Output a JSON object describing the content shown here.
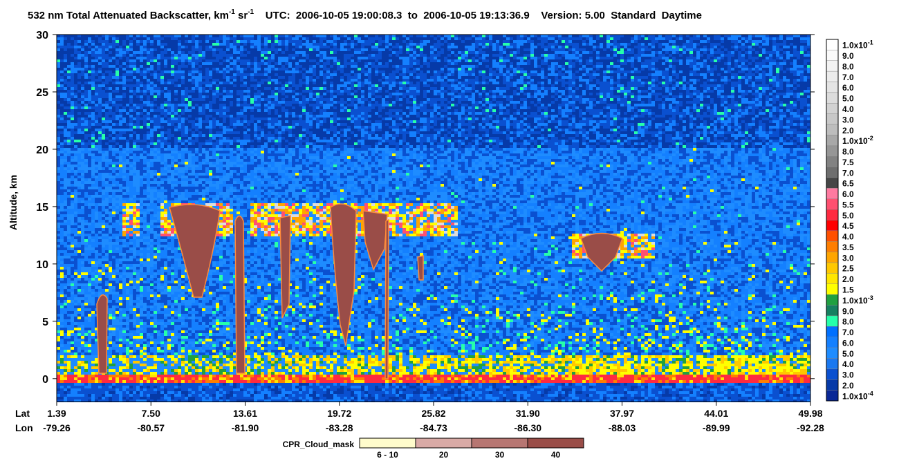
{
  "title": {
    "main": "532 nm Total Attenuated Backscatter, km",
    "sup1": "-1",
    "mid": " sr",
    "sup2": "-1",
    "rest": "    UTC:  2006-10-05 19:00:08.3  to  2006-10-05 19:13:36.9    Version: 5.00  Standard  Daytime"
  },
  "plot": {
    "ylabel": "Altitude, km",
    "ylim": [
      -2,
      30
    ],
    "yticks": [
      0,
      5,
      10,
      15,
      20,
      25,
      30
    ],
    "lat_label": "Lat",
    "lon_label": "Lon",
    "xticks": [
      {
        "lat": "1.39",
        "lon": "-79.26"
      },
      {
        "lat": "7.50",
        "lon": "-80.57"
      },
      {
        "lat": "13.61",
        "lon": "-81.90"
      },
      {
        "lat": "19.72",
        "lon": "-83.28"
      },
      {
        "lat": "25.82",
        "lon": "-84.73"
      },
      {
        "lat": "31.90",
        "lon": "-86.30"
      },
      {
        "lat": "37.97",
        "lon": "-88.03"
      },
      {
        "lat": "44.01",
        "lon": "-89.99"
      },
      {
        "lat": "49.98",
        "lon": "-92.28"
      }
    ]
  },
  "colorbar": {
    "labels": [
      {
        "text": "1.0x10",
        "sup": "-1"
      },
      "9.0",
      "8.0",
      "7.0",
      "6.0",
      "5.0",
      "4.0",
      "3.0",
      "2.0",
      {
        "text": "1.0x10",
        "sup": "-2"
      },
      "8.0",
      "7.5",
      "7.0",
      "6.5",
      "6.0",
      "5.5",
      "5.0",
      "4.5",
      "4.0",
      "3.5",
      "3.0",
      "2.5",
      "2.0",
      "1.5",
      {
        "text": "1.0x10",
        "sup": "-3"
      },
      "9.0",
      "8.0",
      "7.0",
      "6.0",
      "5.0",
      "4.0",
      "3.0",
      "2.0",
      {
        "text": "1.0x10",
        "sup": "-4"
      }
    ],
    "colors": [
      "#ffffff",
      "#fafafa",
      "#f3f3f3",
      "#ececec",
      "#e4e4e4",
      "#dcdcdc",
      "#d2d2d2",
      "#c8c8c8",
      "#bdbdbd",
      "#a8a8a8",
      "#969696",
      "#828282",
      "#6e6e6e",
      "#464646",
      "#ff7aa0",
      "#ff5070",
      "#ff2a40",
      "#ff0000",
      "#ff5000",
      "#ff7e00",
      "#ffa500",
      "#ffc800",
      "#ffe600",
      "#ffff00",
      "#20a040",
      "#168060",
      "#26ffaa",
      "#0070ff",
      "#1480ff",
      "#1e8cff",
      "#1a78f0",
      "#0a50d0",
      "#063aa8",
      "#0a2896"
    ]
  },
  "cpr_legend": {
    "title": "CPR_Cloud_mask",
    "items": [
      {
        "label": "6 - 10",
        "color": "#fffccc"
      },
      {
        "label": "20",
        "color": "#d9aaa6"
      },
      {
        "label": "30",
        "color": "#b77672"
      },
      {
        "label": "40",
        "color": "#9a4d48"
      }
    ]
  }
}
